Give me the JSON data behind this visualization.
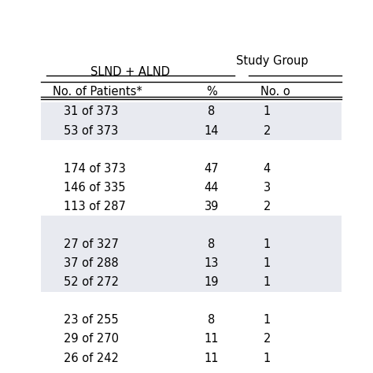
{
  "title": "Study Group",
  "col_group1": "SLND + ALND",
  "col1_header": "No. of Patients*",
  "col2_header": "%",
  "col3_header": "No. o",
  "rows": [
    {
      "col1": "31 of 373",
      "col2": "8",
      "col3": "1",
      "shade": true
    },
    {
      "col1": "53 of 373",
      "col2": "14",
      "col3": "2",
      "shade": true
    },
    {
      "col1": "",
      "col2": "",
      "col3": "",
      "shade": false
    },
    {
      "col1": "174 of 373",
      "col2": "47",
      "col3": "4",
      "shade": false
    },
    {
      "col1": "146 of 335",
      "col2": "44",
      "col3": "3",
      "shade": false
    },
    {
      "col1": "113 of 287",
      "col2": "39",
      "col3": "2",
      "shade": false
    },
    {
      "col1": "",
      "col2": "",
      "col3": "",
      "shade": true
    },
    {
      "col1": "27 of 327",
      "col2": "8",
      "col3": "1",
      "shade": true
    },
    {
      "col1": "37 of 288",
      "col2": "13",
      "col3": "1",
      "shade": true
    },
    {
      "col1": "52 of 272",
      "col2": "19",
      "col3": "1",
      "shade": true
    },
    {
      "col1": "",
      "col2": "",
      "col3": "",
      "shade": false
    },
    {
      "col1": "23 of 255",
      "col2": "8",
      "col3": "1",
      "shade": false
    },
    {
      "col1": "29 of 270",
      "col2": "11",
      "col3": "2",
      "shade": false
    },
    {
      "col1": "26 of 242",
      "col2": "11",
      "col3": "1",
      "shade": false
    }
  ],
  "shade_groups": [
    {
      "start": 0,
      "end": 1,
      "shade": true
    },
    {
      "start": 2,
      "end": 5,
      "shade": false
    },
    {
      "start": 6,
      "end": 9,
      "shade": true
    },
    {
      "start": 10,
      "end": 13,
      "shade": false
    }
  ],
  "bg_color": "#ffffff",
  "shade_color": "#e8eaf0",
  "text_color": "#000000",
  "font_size": 10.5,
  "header_font_size": 10.5
}
